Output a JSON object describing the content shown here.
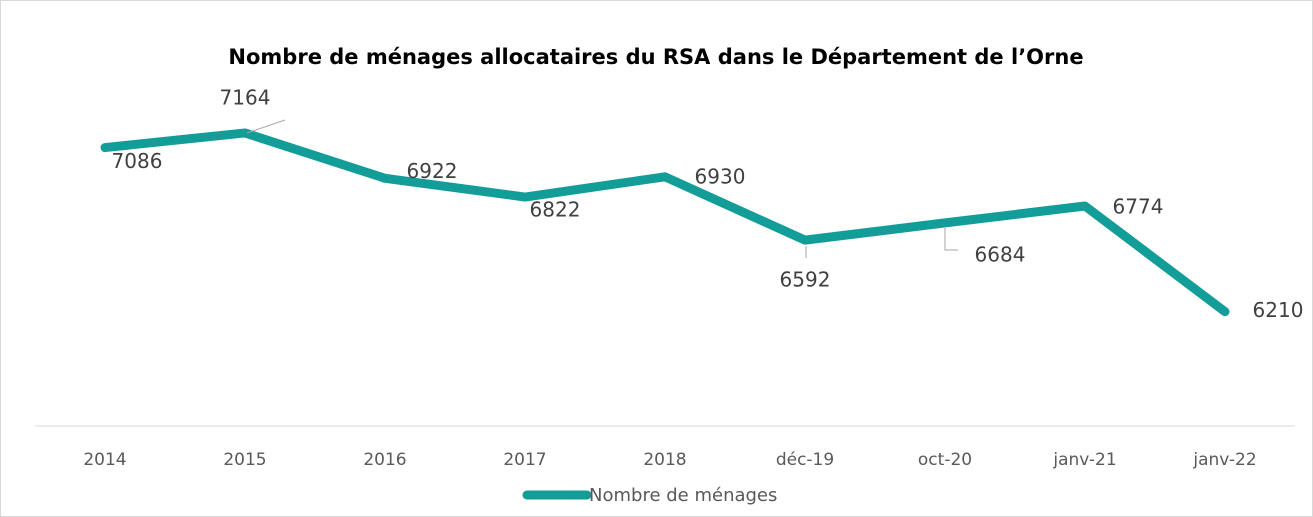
{
  "chart_data": {
    "type": "line",
    "title": "Nombre de ménages allocataires du RSA dans le Département de l’Orne",
    "categories": [
      "2014",
      "2015",
      "2016",
      "2017",
      "2018",
      "déc-19",
      "oct-20",
      "janv-21",
      "janv-22"
    ],
    "series": [
      {
        "name": "Nombre de ménages",
        "color": "#139d99",
        "values": [
          7086,
          7164,
          6922,
          6822,
          6930,
          6592,
          6684,
          6774,
          6210
        ]
      }
    ],
    "ylim": [
      5600,
      7500
    ]
  }
}
